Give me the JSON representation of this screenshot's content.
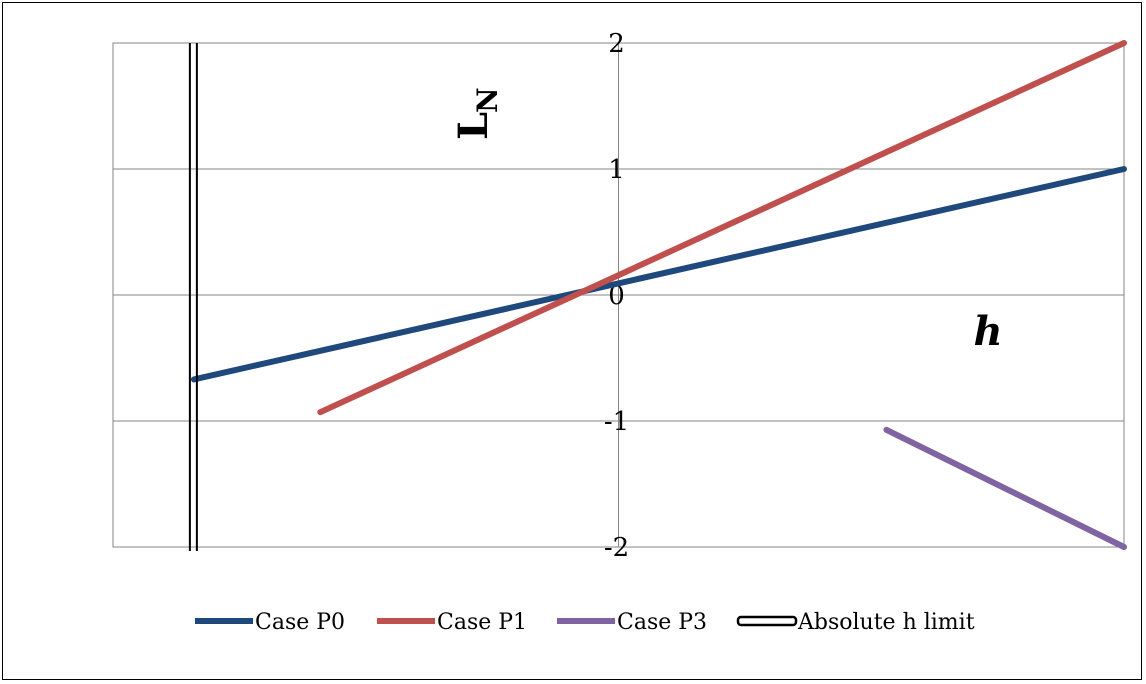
{
  "chart_data": {
    "type": "line",
    "xlabel": "h",
    "ylabel_main": "L",
    "ylabel_sub": "N",
    "xlim": [
      -1,
      1
    ],
    "ylim": [
      -2,
      2
    ],
    "yticks": [
      "2",
      "1",
      "0",
      "-1",
      "-2"
    ],
    "grid": true,
    "legend_position": "bottom",
    "series": [
      {
        "name": "Case P0",
        "color": "#1f497d",
        "points": [
          [
            -0.84,
            -0.67
          ],
          [
            1,
            1
          ]
        ]
      },
      {
        "name": "Case P1",
        "color": "#c0504d",
        "points": [
          [
            -0.59,
            -0.93
          ],
          [
            1,
            2
          ]
        ]
      },
      {
        "name": "Case P3",
        "color": "#8064a2",
        "points": [
          [
            0.53,
            -1.07
          ],
          [
            1,
            -2
          ]
        ]
      }
    ],
    "limit_line": {
      "name": "Absolute h limit",
      "x": -0.84,
      "color": "#000000"
    }
  }
}
